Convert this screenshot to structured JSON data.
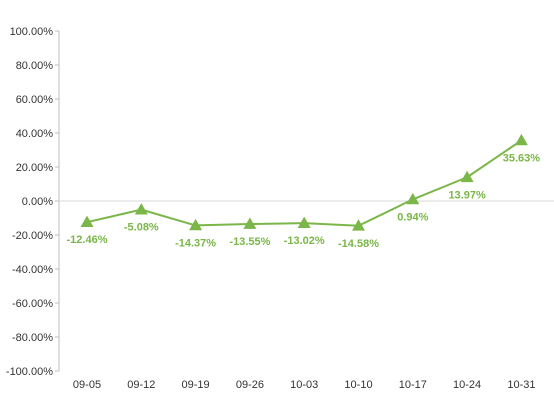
{
  "chart_data": {
    "type": "line",
    "title": "",
    "xlabel": "",
    "ylabel": "",
    "ylim": [
      -100,
      100
    ],
    "ytick_step": 20,
    "ytick_labels": [
      "100.00%",
      "80.00%",
      "60.00%",
      "40.00%",
      "20.00%",
      "0.00%",
      "-20.00%",
      "-40.00%",
      "-60.00%",
      "-80.00%",
      "-100.00%"
    ],
    "categories": [
      "09-05",
      "09-12",
      "09-19",
      "09-26",
      "10-03",
      "10-10",
      "10-17",
      "10-24",
      "10-31"
    ],
    "series": [
      {
        "values": [
          -12.46,
          -5.08,
          -14.37,
          -13.55,
          -13.02,
          -14.58,
          0.94,
          13.97,
          35.63
        ],
        "labels": [
          "-12.46%",
          "-5.08%",
          "-14.37%",
          "-13.55%",
          "-13.02%",
          "-14.58%",
          "0.94%",
          "13.97%",
          "35.63%"
        ],
        "color": "#7ab648",
        "marker": "triangle"
      }
    ],
    "axis_color": "#bfbfbf",
    "zero_line_color": "#d9d9d9",
    "grid": false,
    "legend": "none"
  }
}
